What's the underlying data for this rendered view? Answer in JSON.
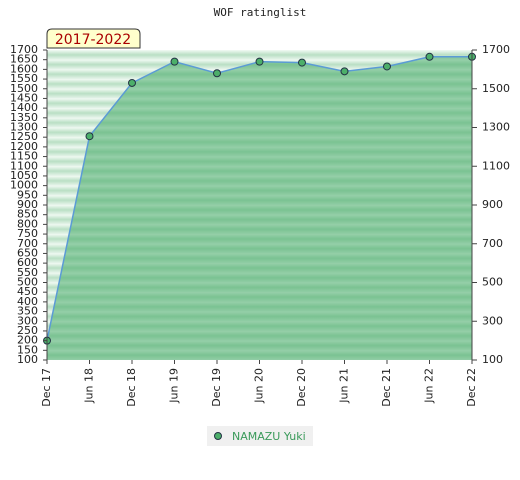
{
  "chart_data": {
    "type": "line",
    "title": "WOF ratinglist",
    "annotation": "2017-2022",
    "categories": [
      "Dec 17",
      "Jun 18",
      "Dec 18",
      "Jun 19",
      "Dec 19",
      "Jun 20",
      "Dec 20",
      "Jun 21",
      "Dec 21",
      "Jun 22",
      "Dec 22"
    ],
    "series": [
      {
        "name": "NAMAZU Yuki",
        "color": "#5b9bd5",
        "values": [
          200,
          1255,
          1530,
          1640,
          1580,
          1640,
          1635,
          1590,
          1615,
          1665,
          1665
        ]
      }
    ],
    "ylim": [
      100,
      1700
    ],
    "yticks": [
      100,
      150,
      200,
      250,
      300,
      350,
      400,
      450,
      500,
      550,
      600,
      650,
      700,
      750,
      800,
      850,
      900,
      950,
      1000,
      1050,
      1100,
      1150,
      1200,
      1250,
      1300,
      1350,
      1400,
      1450,
      1500,
      1550,
      1600,
      1650,
      1700
    ],
    "y2lim": [
      100,
      1700
    ],
    "y2ticks": [
      100,
      300,
      500,
      700,
      900,
      1100,
      1300,
      1500,
      1700
    ]
  }
}
